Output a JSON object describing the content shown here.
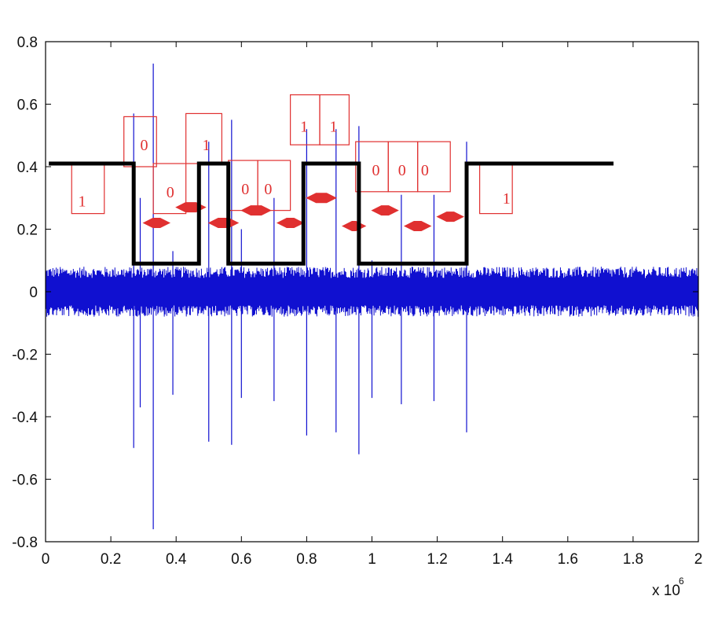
{
  "chart_data": {
    "type": "line",
    "title": "",
    "xlabel": "",
    "ylabel": "",
    "x_exponent_label": {
      "base": "x 10",
      "exponent": "6"
    },
    "xlim": [
      0,
      2
    ],
    "ylim": [
      -0.8,
      0.8
    ],
    "xticks": [
      0,
      0.2,
      0.4,
      0.6,
      0.8,
      1,
      1.2,
      1.4,
      1.6,
      1.8,
      2
    ],
    "xtick_labels": [
      "0",
      "0.2",
      "0.4",
      "0.6",
      "0.8",
      "1",
      "1.2",
      "1.4",
      "1.6",
      "1.8",
      "2"
    ],
    "yticks": [
      -0.8,
      -0.6,
      -0.4,
      -0.2,
      0,
      0.2,
      0.4,
      0.6,
      0.8
    ],
    "ytick_labels": [
      "-0.8",
      "-0.6",
      "-0.4",
      "-0.2",
      "0",
      "0.2",
      "0.4",
      "0.6",
      "0.8"
    ],
    "grid": false,
    "series": [
      {
        "color": "#1010d0",
        "kind": "noise",
        "x_range": [
          0,
          2
        ],
        "baseline_amplitude": 0.08,
        "spikes": [
          {
            "x": 0.27,
            "max": 0.57,
            "min": -0.5
          },
          {
            "x": 0.29,
            "max": 0.3,
            "min": -0.37
          },
          {
            "x": 0.33,
            "max": 0.73,
            "min": -0.76
          },
          {
            "x": 0.39,
            "max": 0.13,
            "min": -0.33
          },
          {
            "x": 0.5,
            "max": 0.48,
            "min": -0.48
          },
          {
            "x": 0.57,
            "max": 0.55,
            "min": -0.49
          },
          {
            "x": 0.6,
            "max": 0.2,
            "min": -0.34
          },
          {
            "x": 0.7,
            "max": 0.3,
            "min": -0.35
          },
          {
            "x": 0.8,
            "max": 0.52,
            "min": -0.46
          },
          {
            "x": 0.89,
            "max": 0.52,
            "min": -0.45
          },
          {
            "x": 0.96,
            "max": 0.53,
            "min": -0.52
          },
          {
            "x": 1.0,
            "max": 0.1,
            "min": -0.34
          },
          {
            "x": 1.09,
            "max": 0.31,
            "min": -0.36
          },
          {
            "x": 1.19,
            "max": 0.31,
            "min": -0.35
          },
          {
            "x": 1.29,
            "max": 0.48,
            "min": -0.45
          }
        ]
      },
      {
        "color": "#000000",
        "kind": "step",
        "points": [
          [
            0.01,
            0.41
          ],
          [
            0.27,
            0.41
          ],
          [
            0.27,
            0.09
          ],
          [
            0.47,
            0.09
          ],
          [
            0.47,
            0.41
          ],
          [
            0.56,
            0.41
          ],
          [
            0.56,
            0.09
          ],
          [
            0.79,
            0.09
          ],
          [
            0.79,
            0.41
          ],
          [
            0.96,
            0.41
          ],
          [
            0.96,
            0.09
          ],
          [
            1.29,
            0.09
          ],
          [
            1.29,
            0.41
          ],
          [
            1.74,
            0.41
          ]
        ]
      }
    ],
    "annotations": {
      "color": "#e03030",
      "bits": [
        {
          "text": "1",
          "x": 0.1,
          "y": 0.29,
          "x0": 0.08,
          "x1": 0.18,
          "y0": 0.25,
          "y1": 0.41
        },
        {
          "text": "0",
          "x": 0.29,
          "y": 0.47,
          "x0": 0.24,
          "x1": 0.34,
          "y0": 0.4,
          "y1": 0.56
        },
        {
          "text": "0",
          "x": 0.37,
          "y": 0.32,
          "x0": 0.33,
          "x1": 0.43,
          "y0": 0.25,
          "y1": 0.41
        },
        {
          "text": "1",
          "x": 0.48,
          "y": 0.47,
          "x0": 0.43,
          "x1": 0.54,
          "y0": 0.41,
          "y1": 0.57
        },
        {
          "text": "0",
          "x": 0.6,
          "y": 0.33,
          "x0": 0.56,
          "x1": 0.65,
          "y0": 0.26,
          "y1": 0.42
        },
        {
          "text": "0",
          "x": 0.67,
          "y": 0.33,
          "x0": 0.65,
          "x1": 0.75,
          "y0": 0.26,
          "y1": 0.42
        },
        {
          "text": "1",
          "x": 0.78,
          "y": 0.53,
          "x0": 0.75,
          "x1": 0.84,
          "y0": 0.47,
          "y1": 0.63
        },
        {
          "text": "1",
          "x": 0.87,
          "y": 0.53,
          "x0": 0.84,
          "x1": 0.93,
          "y0": 0.47,
          "y1": 0.63
        },
        {
          "text": "0",
          "x": 1.0,
          "y": 0.39,
          "x0": 0.95,
          "x1": 1.05,
          "y0": 0.32,
          "y1": 0.48
        },
        {
          "text": "0",
          "x": 1.08,
          "y": 0.39,
          "x0": 1.05,
          "x1": 1.14,
          "y0": 0.32,
          "y1": 0.48
        },
        {
          "text": "0",
          "x": 1.15,
          "y": 0.39,
          "x0": 1.14,
          "x1": 1.24,
          "y0": 0.32,
          "y1": 0.48
        },
        {
          "text": "1",
          "x": 1.4,
          "y": 0.3,
          "x0": 1.33,
          "x1": 1.43,
          "y0": 0.25,
          "y1": 0.41
        }
      ],
      "arrows": [
        {
          "x0": 0.3,
          "x1": 0.38,
          "y": 0.22
        },
        {
          "x0": 0.4,
          "x1": 0.49,
          "y": 0.27
        },
        {
          "x0": 0.5,
          "x1": 0.59,
          "y": 0.22
        },
        {
          "x0": 0.6,
          "x1": 0.69,
          "y": 0.26
        },
        {
          "x0": 0.71,
          "x1": 0.79,
          "y": 0.22
        },
        {
          "x0": 0.8,
          "x1": 0.89,
          "y": 0.3
        },
        {
          "x0": 0.91,
          "x1": 0.98,
          "y": 0.21
        },
        {
          "x0": 1.0,
          "x1": 1.08,
          "y": 0.26
        },
        {
          "x0": 1.1,
          "x1": 1.18,
          "y": 0.21
        },
        {
          "x0": 1.2,
          "x1": 1.28,
          "y": 0.24
        }
      ]
    }
  }
}
